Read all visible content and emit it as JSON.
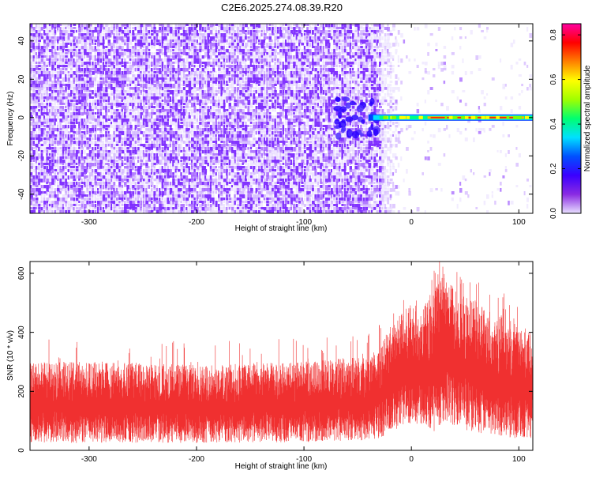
{
  "title": "C2E6.2025.274.08.39.R20",
  "chart_data": [
    {
      "type": "heatmap",
      "xlabel": "Height of straight line (km)",
      "ylabel": "Frequency (Hz)",
      "xlim": [
        -355,
        113
      ],
      "ylim": [
        -50,
        49
      ],
      "xticks": [
        -300,
        -200,
        -100,
        0,
        100
      ],
      "yticks": [
        -40,
        -20,
        0,
        20,
        40
      ],
      "colorbar": {
        "label": "Normalized spectral amplitude",
        "range": [
          0.0,
          0.85
        ],
        "ticks": [
          0.0,
          0.2,
          0.4,
          0.6,
          0.8
        ],
        "colors": [
          "#e8e0ff",
          "#8a2be2",
          "#3a00ff",
          "#0050ff",
          "#00e0ff",
          "#00ff70",
          "#a0ff00",
          "#ffff00",
          "#ff8000",
          "#ff0000",
          "#ff00a0"
        ]
      },
      "features": {
        "noise_region_x": [
          -355,
          -30
        ],
        "carrier_start_km": -40,
        "carrier_frequency_hz": 0,
        "carrier_peak_range_km": [
          15,
          105
        ],
        "carrier_peak_amplitude": 0.72
      }
    },
    {
      "type": "line",
      "xlabel": "Height of straight line (km)",
      "ylabel": "SNR (10 * v/v)",
      "xlim": [
        -355,
        113
      ],
      "ylim": [
        0,
        640
      ],
      "xticks": [
        -300,
        -200,
        -100,
        0,
        100
      ],
      "yticks": [
        0,
        200,
        400,
        600
      ],
      "series": [
        {
          "name": "SNR",
          "color": "#f03030",
          "envelope_x": [
            -355,
            -300,
            -200,
            -100,
            -40,
            -30,
            -20,
            -10,
            0,
            10,
            20,
            30,
            40,
            50,
            60,
            70,
            80,
            90,
            100,
            113
          ],
          "envelope_low": [
            25,
            25,
            25,
            28,
            35,
            40,
            60,
            80,
            90,
            90,
            60,
            100,
            80,
            70,
            60,
            55,
            50,
            45,
            40,
            40
          ],
          "envelope_high": [
            300,
            300,
            290,
            300,
            320,
            350,
            420,
            460,
            500,
            480,
            540,
            600,
            560,
            520,
            510,
            490,
            470,
            450,
            420,
            400
          ]
        }
      ]
    }
  ]
}
